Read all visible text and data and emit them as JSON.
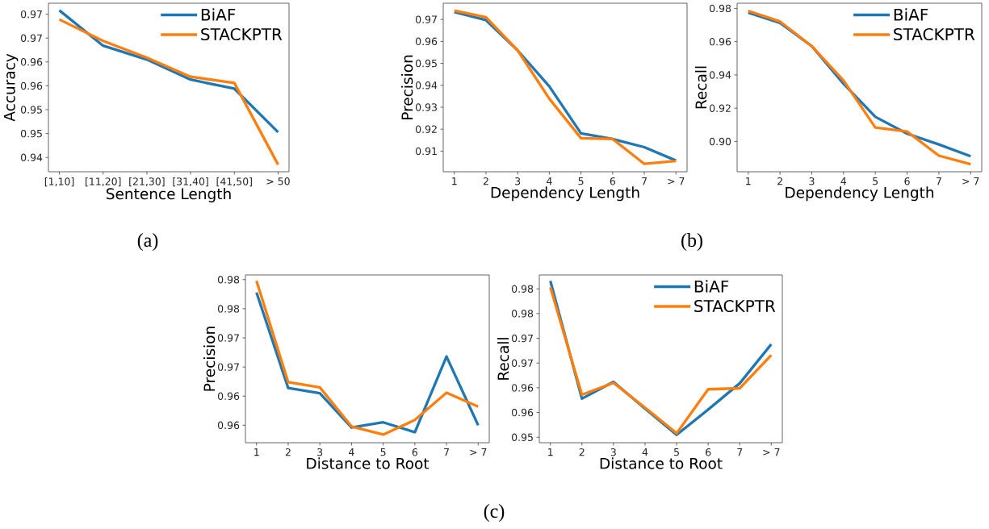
{
  "chart_data": [
    {
      "type": "line",
      "xlabel": "Sentence Length",
      "ylabel": "Accuracy",
      "categories": [
        "[1,10]",
        "[11,20]",
        "[21,30]",
        "[31,40]",
        "[41,50]",
        "> 50"
      ],
      "series": [
        {
          "name": "BiAF",
          "color": "#1f77b4",
          "values": [
            0.9708,
            0.9634,
            0.9605,
            0.9563,
            0.9544,
            0.9453
          ]
        },
        {
          "name": "STACKPTR",
          "color": "#ff7f0e",
          "values": [
            0.9689,
            0.9644,
            0.9609,
            0.9569,
            0.9556,
            0.9385
          ]
        }
      ],
      "ylim": [
        0.937,
        0.9723
      ],
      "yticks": [
        {
          "value": 0.94,
          "label": "0.94"
        },
        {
          "value": 0.945,
          "label": "0.95"
        },
        {
          "value": 0.95,
          "label": "0.95"
        },
        {
          "value": 0.955,
          "label": "0.96"
        },
        {
          "value": 0.96,
          "label": "0.96"
        },
        {
          "value": 0.965,
          "label": "0.97"
        },
        {
          "value": 0.97,
          "label": "0.97"
        }
      ],
      "legend": "top right",
      "annotations": [
        "(a)"
      ]
    },
    {
      "type": "line",
      "xlabel": "Dependency Length",
      "ylabel": "Precision",
      "categories": [
        "1",
        "2",
        "3",
        "4",
        "5",
        "6",
        "7",
        "> 7"
      ],
      "series": [
        {
          "color": "#1f77b4",
          "values": [
            0.9734,
            0.9697,
            0.9559,
            0.9395,
            0.9181,
            0.9155,
            0.9118,
            0.9057
          ]
        },
        {
          "color": "#ff7f0e",
          "values": [
            0.974,
            0.971,
            0.9559,
            0.9339,
            0.9159,
            0.9155,
            0.9042,
            0.9055
          ]
        }
      ],
      "ylim": [
        0.9006,
        0.9774
      ],
      "yticks": [
        0.91,
        0.92,
        0.93,
        0.94,
        0.95,
        0.96,
        0.97
      ],
      "annotations": [
        "(b)"
      ]
    },
    {
      "type": "line",
      "xlabel": "Dependency Length",
      "ylabel": "Recall",
      "categories": [
        "1",
        "2",
        "3",
        "4",
        "5",
        "6",
        "7",
        "> 7"
      ],
      "series": [
        {
          "name": "BiAF",
          "color": "#1f77b4",
          "values": [
            0.9774,
            0.9713,
            0.9573,
            0.9347,
            0.9148,
            0.9047,
            0.8982,
            0.8911
          ]
        },
        {
          "name": "STACKPTR",
          "color": "#ff7f0e",
          "values": [
            0.9785,
            0.9721,
            0.9573,
            0.9366,
            0.9084,
            0.906,
            0.8915,
            0.8863
          ]
        }
      ],
      "ylim": [
        0.8818,
        0.9831
      ],
      "yticks": [
        {
          "value": 0.9,
          "label": "0.90"
        },
        0.92,
        0.94,
        0.96,
        0.98
      ],
      "legend": "top right"
    },
    {
      "type": "line",
      "xlabel": "Distance to Root",
      "ylabel": "Precision",
      "categories": [
        "1",
        "2",
        "3",
        "4",
        "5",
        "6",
        "7",
        "> 7"
      ],
      "series": [
        {
          "color": "#1f77b4",
          "values": [
            0.9778,
            0.9614,
            0.9605,
            0.9546,
            0.9555,
            0.9538,
            0.9668,
            0.955
          ]
        },
        {
          "color": "#ff7f0e",
          "values": [
            0.9798,
            0.9624,
            0.9615,
            0.9548,
            0.9534,
            0.9559,
            0.9606,
            0.9582
          ]
        }
      ],
      "ylim": [
        0.952,
        0.9808
      ],
      "yticks": [
        {
          "value": 0.955,
          "label": "0.96"
        },
        {
          "value": 0.96,
          "label": "0.96"
        },
        {
          "value": 0.965,
          "label": "0.97"
        },
        {
          "value": 0.97,
          "label": "0.97"
        },
        {
          "value": 0.975,
          "label": "0.98"
        },
        {
          "value": 0.98,
          "label": "0.98"
        }
      ],
      "annotations": [
        "(c)"
      ]
    },
    {
      "type": "line",
      "xlabel": "Distance to Root",
      "ylabel": "Recall",
      "categories": [
        "1",
        "2",
        "3",
        "4",
        "5",
        "6",
        "7",
        "> 7"
      ],
      "series": [
        {
          "name": "BiAF",
          "color": "#1f77b4",
          "values": [
            0.9816,
            0.9578,
            0.9612,
            0.9558,
            0.9505,
            0.9556,
            0.9609,
            0.9688
          ]
        },
        {
          "name": "STACKPTR",
          "color": "#ff7f0e",
          "values": [
            0.9803,
            0.9586,
            0.961,
            0.956,
            0.9508,
            0.9597,
            0.9599,
            0.9666
          ]
        }
      ],
      "ylim": [
        0.9489,
        0.9828
      ],
      "yticks": [
        {
          "value": 0.95,
          "label": "0.95"
        },
        {
          "value": 0.955,
          "label": "0.96"
        },
        {
          "value": 0.96,
          "label": "0.96"
        },
        {
          "value": 0.965,
          "label": "0.97"
        },
        {
          "value": 0.97,
          "label": "0.97"
        },
        {
          "value": 0.975,
          "label": "0.98"
        },
        {
          "value": 0.98,
          "label": "0.98"
        }
      ],
      "legend": "top right"
    }
  ]
}
